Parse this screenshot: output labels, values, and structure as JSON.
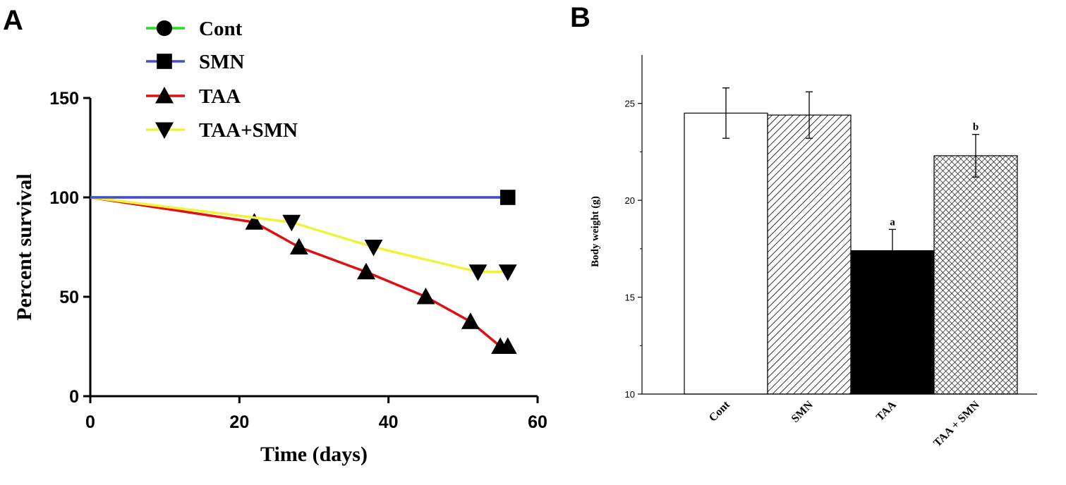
{
  "panels": {
    "a_label": "A",
    "b_label": "B"
  },
  "chart_data": [
    {
      "type": "line",
      "title": "",
      "xlabel": "Time (days)",
      "ylabel": "Percent survival",
      "xlim": [
        0,
        60
      ],
      "ylim": [
        0,
        150
      ],
      "xticks": [
        "0",
        "20",
        "40",
        "60"
      ],
      "yticks": [
        "0",
        "50",
        "100",
        "150"
      ],
      "legend_position": "top",
      "series": [
        {
          "name": "Cont",
          "color": "#22dd22",
          "marker": "circle",
          "points": [
            [
              0,
              100
            ],
            [
              56,
              100
            ]
          ],
          "markers": []
        },
        {
          "name": "SMN",
          "color": "#4a4ad8",
          "marker": "square",
          "points": [
            [
              0,
              100
            ],
            [
              56,
              100
            ]
          ],
          "markers": [
            [
              56,
              100
            ]
          ]
        },
        {
          "name": "TAA",
          "color": "#e01010",
          "marker": "triangle-up",
          "points": [
            [
              0,
              100
            ],
            [
              22,
              87.5
            ],
            [
              28,
              75
            ],
            [
              37,
              62.5
            ],
            [
              45,
              50
            ],
            [
              51,
              37.5
            ],
            [
              55,
              25
            ],
            [
              56,
              25
            ]
          ],
          "markers": [
            [
              22,
              87.5
            ],
            [
              28,
              75
            ],
            [
              37,
              62.5
            ],
            [
              45,
              50
            ],
            [
              51,
              37.5
            ],
            [
              55,
              25
            ],
            [
              56,
              25
            ]
          ]
        },
        {
          "name": "TAA+SMN",
          "color": "#f2f23a",
          "marker": "triangle-down",
          "points": [
            [
              0,
              100
            ],
            [
              27,
              87.5
            ],
            [
              38,
              75
            ],
            [
              52,
              62.5
            ],
            [
              56,
              62.5
            ]
          ],
          "markers": [
            [
              27,
              87.5
            ],
            [
              38,
              75
            ],
            [
              52,
              62.5
            ],
            [
              56,
              62.5
            ]
          ]
        }
      ]
    },
    {
      "type": "bar",
      "title": "",
      "xlabel": "",
      "ylabel": "Body weight (g)",
      "ylim": [
        10,
        27.5
      ],
      "yticks": [
        "10",
        "15",
        "20",
        "25"
      ],
      "categories": [
        "Cont",
        "SMN",
        "TAA",
        "TAA + SMN"
      ],
      "values": [
        24.5,
        24.4,
        17.4,
        22.3
      ],
      "errors": [
        1.3,
        1.2,
        1.1,
        1.1
      ],
      "annotations": [
        "",
        "",
        "a",
        "b"
      ],
      "fills": [
        "white",
        "diagonal-hatch",
        "black",
        "crosshatch"
      ]
    }
  ]
}
